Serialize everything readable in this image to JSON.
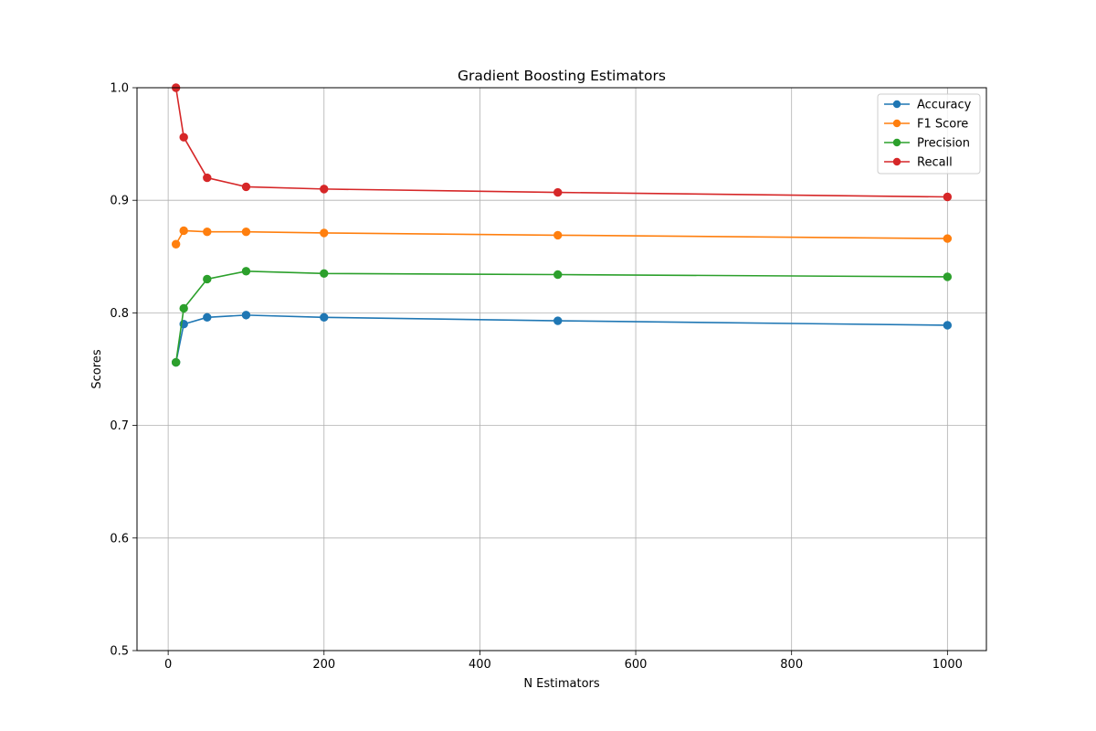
{
  "chart_data": {
    "type": "line",
    "title": "Gradient Boosting Estimators",
    "xlabel": "N Estimators",
    "ylabel": "Scores",
    "xlim": [
      -40,
      1050
    ],
    "ylim": [
      0.5,
      1.0
    ],
    "x_ticks": [
      0,
      200,
      400,
      600,
      800,
      1000
    ],
    "y_ticks": [
      0.5,
      0.6,
      0.7,
      0.8,
      0.9,
      1.0
    ],
    "x_tick_labels": [
      "0",
      "200",
      "400",
      "600",
      "800",
      "1000"
    ],
    "y_tick_labels": [
      "0.5",
      "0.6",
      "0.7",
      "0.8",
      "0.9",
      "1.0"
    ],
    "grid": true,
    "legend_position": "top-right",
    "x": [
      10,
      20,
      50,
      100,
      200,
      500,
      1000
    ],
    "series": [
      {
        "name": "Accuracy",
        "color": "#1f77b4",
        "marker": "circle",
        "values": [
          0.756,
          0.79,
          0.796,
          0.798,
          0.796,
          0.793,
          0.789
        ]
      },
      {
        "name": "F1 Score",
        "color": "#ff7f0e",
        "marker": "circle",
        "values": [
          0.861,
          0.873,
          0.872,
          0.872,
          0.871,
          0.869,
          0.866
        ]
      },
      {
        "name": "Precision",
        "color": "#2ca02c",
        "marker": "circle",
        "values": [
          0.756,
          0.804,
          0.83,
          0.837,
          0.835,
          0.834,
          0.832
        ]
      },
      {
        "name": "Recall",
        "color": "#d62728",
        "marker": "circle",
        "values": [
          1.0,
          0.956,
          0.92,
          0.912,
          0.91,
          0.907,
          0.903
        ]
      }
    ]
  }
}
